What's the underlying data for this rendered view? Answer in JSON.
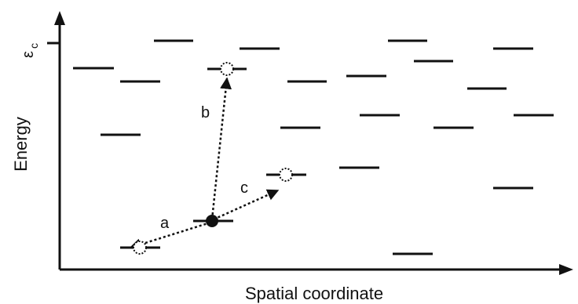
{
  "axes": {
    "x_label": "Spatial coordinate",
    "y_label": "Energy",
    "ec_label": "ε",
    "ec_subscript": "c"
  },
  "hops": {
    "a": "a",
    "b": "b",
    "c": "c"
  },
  "colors": {
    "ink": "#111111",
    "background": "#ffffff"
  }
}
